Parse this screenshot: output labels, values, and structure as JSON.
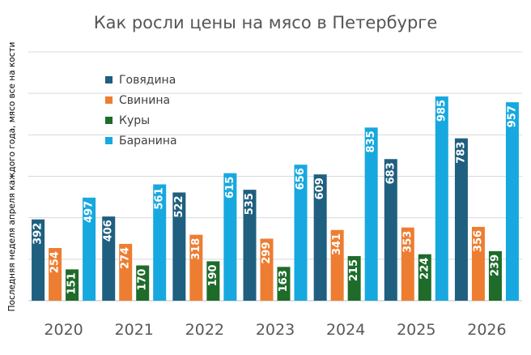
{
  "chart_data": {
    "type": "bar",
    "title": "Как росли цены на мясо в Петербурге",
    "ylabel": "Последняя неделя апреля каждого года, мясо все на кости",
    "xlabel": "",
    "categories": [
      "2020",
      "2021",
      "2022",
      "2023",
      "2024",
      "2025",
      "2026"
    ],
    "series": [
      {
        "name": "Говядина",
        "color": "#1f5f7f",
        "values": [
          392,
          406,
          522,
          535,
          609,
          683,
          783
        ]
      },
      {
        "name": "Свинина",
        "color": "#ed7d31",
        "values": [
          254,
          274,
          318,
          299,
          341,
          353,
          356
        ]
      },
      {
        "name": "Куры",
        "color": "#1e6b2a",
        "values": [
          151,
          170,
          190,
          163,
          215,
          224,
          239
        ]
      },
      {
        "name": "Баранина",
        "color": "#17a8df",
        "values": [
          497,
          561,
          615,
          656,
          835,
          985,
          957
        ]
      }
    ],
    "ylim": [
      0,
      1200
    ],
    "grid": true,
    "legend": "top-left"
  }
}
